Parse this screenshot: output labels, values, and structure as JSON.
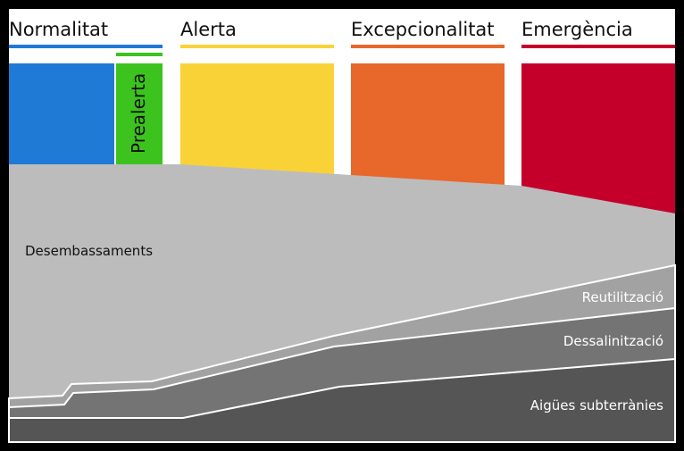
{
  "stages": [
    {
      "label": "Normalitat",
      "color": "#1f7ad6"
    },
    {
      "label": "Prealerta",
      "color": "#3cc31e"
    },
    {
      "label": "Alerta",
      "color": "#f9d238"
    },
    {
      "label": "Excepcionalitat",
      "color": "#e8672a"
    },
    {
      "label": "Emergència",
      "color": "#c4002a"
    }
  ],
  "sources": [
    {
      "label": "Desembassaments",
      "color": "#bdbcbd",
      "text_color": "#111111"
    },
    {
      "label": "Reutilització",
      "color": "#a3a2a3",
      "text_color": "#ffffff"
    },
    {
      "label": "Dessalinització",
      "color": "#757475",
      "text_color": "#ffffff"
    },
    {
      "label": "Aigües subterrànies",
      "color": "#555555",
      "text_color": "#ffffff"
    }
  ]
}
